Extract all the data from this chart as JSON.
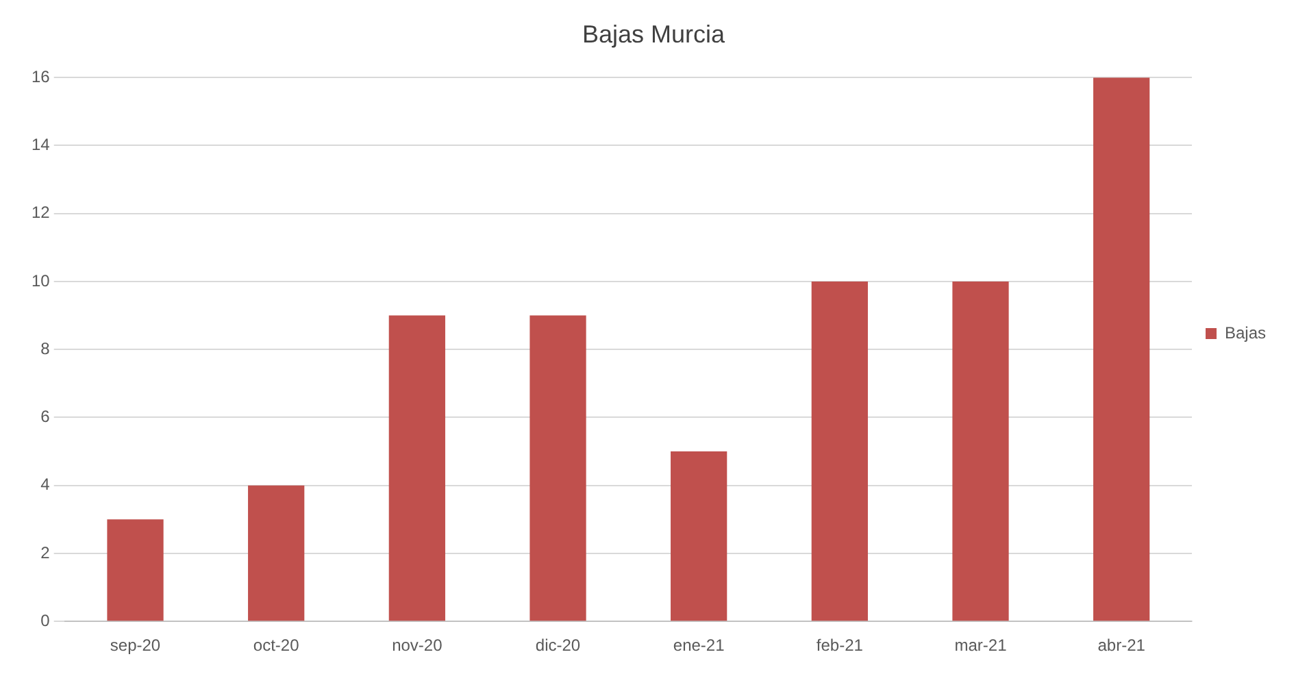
{
  "chart_data": {
    "type": "bar",
    "title": "Bajas Murcia",
    "categories": [
      "sep-20",
      "oct-20",
      "nov-20",
      "dic-20",
      "ene-21",
      "feb-21",
      "mar-21",
      "abr-21"
    ],
    "series": [
      {
        "name": "Bajas",
        "color": "#c0504d",
        "values": [
          3,
          4,
          9,
          9,
          5,
          10,
          10,
          16
        ]
      }
    ],
    "ylim": [
      0,
      16
    ],
    "yticks": [
      0,
      2,
      4,
      6,
      8,
      10,
      12,
      14,
      16
    ],
    "grid": "y",
    "legend": "right"
  }
}
